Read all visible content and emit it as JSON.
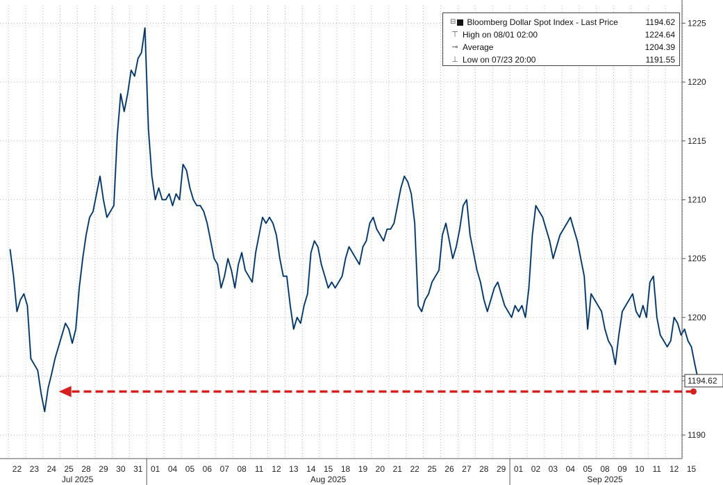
{
  "legend": {
    "series_name": "Bloomberg Dollar Spot Index - Last Price",
    "last_value": "1194.62",
    "high_label": "High on 08/01 02:00",
    "high_value": "1224.64",
    "avg_label": "Average",
    "avg_value": "1204.39",
    "low_label": "Low on 07/23 20:00",
    "low_value": "1191.55"
  },
  "chart_data": {
    "type": "line",
    "series": [
      {
        "name": "Bloomberg Dollar Spot Index - Last Price",
        "points": [
          [
            "22",
            1205.8
          ],
          [
            "22",
            1203.5
          ],
          [
            "22",
            1200.5
          ],
          [
            "22",
            1201.5
          ],
          [
            "22",
            1202.0
          ],
          [
            "23",
            1201.0
          ],
          [
            "23",
            1196.5
          ],
          [
            "23",
            1196.0
          ],
          [
            "23",
            1195.5
          ],
          [
            "23",
            1193.5
          ],
          [
            "24",
            1192.0
          ],
          [
            "24",
            1194.0
          ],
          [
            "24",
            1195.2
          ],
          [
            "24",
            1196.5
          ],
          [
            "24",
            1197.5
          ],
          [
            "25",
            1198.5
          ],
          [
            "25",
            1199.5
          ],
          [
            "25",
            1199.0
          ],
          [
            "25",
            1197.8
          ],
          [
            "25",
            1199.0
          ],
          [
            "28",
            1202.5
          ],
          [
            "28",
            1205.0
          ],
          [
            "28",
            1207.0
          ],
          [
            "28",
            1208.5
          ],
          [
            "28",
            1209.0
          ],
          [
            "29",
            1210.5
          ],
          [
            "29",
            1212.0
          ],
          [
            "29",
            1210.0
          ],
          [
            "29",
            1208.5
          ],
          [
            "29",
            1209.0
          ],
          [
            "30",
            1209.5
          ],
          [
            "30",
            1215.5
          ],
          [
            "30",
            1219.0
          ],
          [
            "30",
            1217.5
          ],
          [
            "30",
            1219.0
          ],
          [
            "31",
            1221.0
          ],
          [
            "31",
            1220.5
          ],
          [
            "31",
            1222.0
          ],
          [
            "31",
            1222.5
          ],
          [
            "31",
            1224.6
          ],
          [
            "01",
            1216.0
          ],
          [
            "01",
            1212.0
          ],
          [
            "01",
            1210.0
          ],
          [
            "01",
            1211.0
          ],
          [
            "01",
            1210.0
          ],
          [
            "04",
            1210.0
          ],
          [
            "04",
            1210.5
          ],
          [
            "04",
            1209.5
          ],
          [
            "04",
            1210.5
          ],
          [
            "04",
            1210.0
          ],
          [
            "05",
            1213.0
          ],
          [
            "05",
            1212.5
          ],
          [
            "05",
            1211.0
          ],
          [
            "05",
            1210.0
          ],
          [
            "05",
            1209.5
          ],
          [
            "06",
            1209.5
          ],
          [
            "06",
            1209.0
          ],
          [
            "06",
            1208.0
          ],
          [
            "06",
            1206.5
          ],
          [
            "06",
            1205.0
          ],
          [
            "07",
            1204.5
          ],
          [
            "07",
            1202.5
          ],
          [
            "07",
            1203.5
          ],
          [
            "07",
            1205.0
          ],
          [
            "07",
            1204.0
          ],
          [
            "08",
            1202.5
          ],
          [
            "08",
            1204.5
          ],
          [
            "08",
            1205.5
          ],
          [
            "08",
            1204.0
          ],
          [
            "08",
            1203.5
          ],
          [
            "11",
            1203.0
          ],
          [
            "11",
            1205.5
          ],
          [
            "11",
            1207.0
          ],
          [
            "11",
            1208.5
          ],
          [
            "11",
            1208.0
          ],
          [
            "12",
            1208.5
          ],
          [
            "12",
            1208.0
          ],
          [
            "12",
            1207.0
          ],
          [
            "12",
            1205.0
          ],
          [
            "12",
            1203.5
          ],
          [
            "13",
            1203.5
          ],
          [
            "13",
            1201.0
          ],
          [
            "13",
            1199.0
          ],
          [
            "13",
            1200.0
          ],
          [
            "13",
            1199.5
          ],
          [
            "14",
            1201.0
          ],
          [
            "14",
            1202.0
          ],
          [
            "14",
            1205.5
          ],
          [
            "14",
            1206.5
          ],
          [
            "14",
            1206.0
          ],
          [
            "15",
            1204.5
          ],
          [
            "15",
            1203.5
          ],
          [
            "15",
            1202.5
          ],
          [
            "15",
            1203.0
          ],
          [
            "15",
            1202.5
          ],
          [
            "18",
            1203.0
          ],
          [
            "18",
            1203.5
          ],
          [
            "18",
            1205.0
          ],
          [
            "18",
            1206.0
          ],
          [
            "18",
            1205.5
          ],
          [
            "19",
            1205.0
          ],
          [
            "19",
            1204.5
          ],
          [
            "19",
            1206.0
          ],
          [
            "19",
            1206.5
          ],
          [
            "19",
            1208.0
          ],
          [
            "20",
            1208.5
          ],
          [
            "20",
            1207.5
          ],
          [
            "20",
            1207.0
          ],
          [
            "20",
            1206.5
          ],
          [
            "20",
            1207.5
          ],
          [
            "21",
            1207.5
          ],
          [
            "21",
            1208.0
          ],
          [
            "21",
            1209.5
          ],
          [
            "21",
            1211.0
          ],
          [
            "21",
            1212.0
          ],
          [
            "22",
            1211.5
          ],
          [
            "22",
            1210.5
          ],
          [
            "22",
            1208.0
          ],
          [
            "22",
            1201.0
          ],
          [
            "22",
            1200.5
          ],
          [
            "25",
            1201.5
          ],
          [
            "25",
            1202.0
          ],
          [
            "25",
            1203.0
          ],
          [
            "25",
            1203.5
          ],
          [
            "25",
            1204.0
          ],
          [
            "26",
            1207.0
          ],
          [
            "26",
            1208.0
          ],
          [
            "26",
            1206.5
          ],
          [
            "26",
            1205.0
          ],
          [
            "26",
            1206.0
          ],
          [
            "27",
            1207.5
          ],
          [
            "27",
            1209.5
          ],
          [
            "27",
            1210.0
          ],
          [
            "27",
            1207.0
          ],
          [
            "27",
            1205.5
          ],
          [
            "28",
            1204.0
          ],
          [
            "28",
            1203.0
          ],
          [
            "28",
            1201.5
          ],
          [
            "28",
            1200.5
          ],
          [
            "28",
            1201.5
          ],
          [
            "29",
            1202.5
          ],
          [
            "29",
            1203.0
          ],
          [
            "29",
            1202.0
          ],
          [
            "29",
            1201.0
          ],
          [
            "29",
            1200.5
          ],
          [
            "01",
            1200.0
          ],
          [
            "01",
            1201.0
          ],
          [
            "01",
            1200.5
          ],
          [
            "01",
            1201.0
          ],
          [
            "01",
            1200.0
          ],
          [
            "02",
            1202.5
          ],
          [
            "02",
            1207.0
          ],
          [
            "02",
            1209.5
          ],
          [
            "02",
            1209.0
          ],
          [
            "02",
            1208.5
          ],
          [
            "03",
            1207.5
          ],
          [
            "03",
            1206.5
          ],
          [
            "03",
            1205.0
          ],
          [
            "03",
            1206.0
          ],
          [
            "03",
            1207.0
          ],
          [
            "04",
            1207.5
          ],
          [
            "04",
            1208.0
          ],
          [
            "04",
            1208.5
          ],
          [
            "04",
            1207.5
          ],
          [
            "04",
            1206.5
          ],
          [
            "05",
            1205.0
          ],
          [
            "05",
            1203.5
          ],
          [
            "05",
            1199.0
          ],
          [
            "05",
            1202.0
          ],
          [
            "05",
            1201.5
          ],
          [
            "08",
            1201.0
          ],
          [
            "08",
            1200.5
          ],
          [
            "08",
            1199.0
          ],
          [
            "08",
            1198.0
          ],
          [
            "08",
            1197.5
          ],
          [
            "09",
            1196.0
          ],
          [
            "09",
            1198.5
          ],
          [
            "09",
            1200.5
          ],
          [
            "09",
            1201.0
          ],
          [
            "09",
            1201.5
          ],
          [
            "10",
            1202.0
          ],
          [
            "10",
            1200.5
          ],
          [
            "10",
            1200.0
          ],
          [
            "10",
            1201.0
          ],
          [
            "10",
            1200.0
          ],
          [
            "11",
            1203.0
          ],
          [
            "11",
            1203.5
          ],
          [
            "11",
            1200.0
          ],
          [
            "11",
            1198.5
          ],
          [
            "11",
            1198.0
          ],
          [
            "12",
            1197.5
          ],
          [
            "12",
            1198.0
          ],
          [
            "12",
            1200.0
          ],
          [
            "12",
            1199.5
          ],
          [
            "12",
            1198.5
          ],
          [
            "15",
            1199.0
          ],
          [
            "15",
            1198.0
          ],
          [
            "15",
            1197.5
          ],
          [
            "15",
            1196.0
          ],
          [
            "15",
            1194.62
          ]
        ]
      }
    ],
    "categories": [
      "22",
      "23",
      "24",
      "25",
      "28",
      "29",
      "30",
      "31",
      "01",
      "04",
      "05",
      "06",
      "07",
      "08",
      "11",
      "12",
      "13",
      "14",
      "15",
      "18",
      "19",
      "20",
      "21",
      "22",
      "25",
      "26",
      "27",
      "28",
      "29",
      "01",
      "02",
      "03",
      "04",
      "05",
      "08",
      "09",
      "10",
      "11",
      "12",
      "15"
    ],
    "months": [
      {
        "label": "Jul 2025",
        "from": 0,
        "to": 7
      },
      {
        "label": "Aug 2025",
        "from": 8,
        "to": 28
      },
      {
        "label": "Sep 2025",
        "from": 29,
        "to": 39
      }
    ],
    "y_ticks": [
      1190,
      1195,
      1200,
      1205,
      1210,
      1215,
      1220,
      1225
    ],
    "y_tick_labels": [
      "1190",
      "",
      "1200",
      "1205",
      "1210",
      "1215",
      "1220",
      "1225"
    ],
    "ylim": [
      1188,
      1226.5
    ],
    "last_value_label": "1194.62",
    "annotation": {
      "type": "dashed-arrow",
      "color": "#d42020",
      "y": 1193.7,
      "from_index": 39,
      "to_index": 3
    },
    "line_color": "#111111",
    "accent_color": "#2e86de",
    "grid": true,
    "legend_position": "top-right"
  }
}
